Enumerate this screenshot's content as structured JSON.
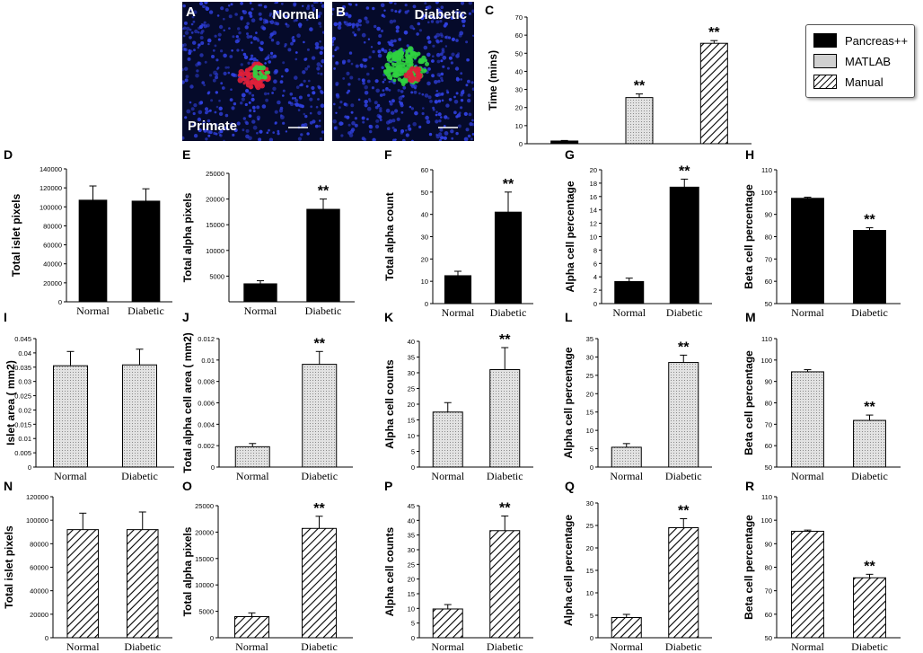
{
  "microscopy": [
    {
      "panel": "A",
      "label": "Normal",
      "sublabel": "Primate"
    },
    {
      "panel": "B",
      "label": "Diabetic",
      "sublabel": ""
    }
  ],
  "legend": [
    {
      "name": "Pancreas++",
      "pattern": "solid"
    },
    {
      "name": "MATLAB",
      "pattern": "dotted"
    },
    {
      "name": "Manual",
      "pattern": "hatched"
    }
  ],
  "colors": {
    "solid": "#000000",
    "dotted": "#d0d0d0",
    "hatched_line": "#000000",
    "cell_red": "#e0203a",
    "cell_green": "#30d040",
    "nuclei": "#3040e0"
  },
  "chart_data": [
    {
      "panel": "C",
      "type": "bar",
      "ylabel": "Time (mins)",
      "ylim": [
        0,
        70
      ],
      "yticks": [
        0,
        10,
        20,
        30,
        40,
        50,
        60,
        70
      ],
      "categories": [
        "",
        "",
        " "
      ],
      "values": [
        1.5,
        25.5,
        55.5
      ],
      "errors": [
        0.3,
        2,
        1.5
      ],
      "patterns": [
        "solid",
        "dotted",
        "hatched"
      ],
      "marks": [
        "",
        "**",
        "**"
      ]
    },
    {
      "panel": "D",
      "type": "bar",
      "ylabel": "Total islet pixels",
      "ylim": [
        0,
        140000
      ],
      "yticks": [
        0,
        20000,
        40000,
        60000,
        80000,
        100000,
        120000,
        140000
      ],
      "categories": [
        "Normal",
        "Diabetic"
      ],
      "values": [
        107000,
        106000
      ],
      "errors": [
        15000,
        13000
      ],
      "pattern": "solid",
      "marks": [
        "",
        ""
      ]
    },
    {
      "panel": "E",
      "type": "bar",
      "ylabel": "Total alpha pixels",
      "ylim": [
        0,
        25000
      ],
      "yticks": [
        5000,
        10000,
        15000,
        20000,
        25000
      ],
      "categories": [
        "Normal",
        "Diabetic"
      ],
      "values": [
        3500,
        18000
      ],
      "errors": [
        600,
        2000
      ],
      "pattern": "solid",
      "marks": [
        "",
        "**"
      ]
    },
    {
      "panel": "F",
      "type": "bar",
      "ylabel": "Total alpha count",
      "ylim": [
        0,
        60
      ],
      "yticks": [
        0,
        10,
        20,
        30,
        40,
        50,
        60
      ],
      "categories": [
        "Normal",
        "Diabetic"
      ],
      "values": [
        12.5,
        41
      ],
      "errors": [
        2,
        9
      ],
      "pattern": "solid",
      "marks": [
        "",
        "**"
      ]
    },
    {
      "panel": "G",
      "type": "bar",
      "ylabel": "Alpha cell percentage",
      "ylim": [
        0,
        20
      ],
      "yticks": [
        0,
        2,
        4,
        6,
        8,
        10,
        12,
        14,
        16,
        18,
        20
      ],
      "categories": [
        "Normal",
        "Diabetic"
      ],
      "values": [
        3.3,
        17.4
      ],
      "errors": [
        0.5,
        1.2
      ],
      "pattern": "solid",
      "marks": [
        "",
        "**"
      ]
    },
    {
      "panel": "H",
      "type": "bar",
      "ylabel": "Beta cell percentage",
      "ylim": [
        50,
        110
      ],
      "yticks": [
        50,
        60,
        70,
        80,
        90,
        100,
        110
      ],
      "categories": [
        "Normal",
        "Diabetic"
      ],
      "values": [
        97.2,
        82.8
      ],
      "errors": [
        0.5,
        1.2
      ],
      "pattern": "solid",
      "marks": [
        "",
        "**"
      ]
    },
    {
      "panel": "I",
      "type": "bar",
      "ylabel": "Islet area ( mm2)",
      "ylim": [
        0,
        0.045
      ],
      "yticks": [
        0,
        0.005,
        0.01,
        0.015,
        0.02,
        0.025,
        0.03,
        0.035,
        0.04,
        0.045
      ],
      "categories": [
        "Normal",
        "Diabetic"
      ],
      "values": [
        0.0355,
        0.0358
      ],
      "errors": [
        0.005,
        0.0055
      ],
      "pattern": "dotted",
      "marks": [
        "",
        ""
      ]
    },
    {
      "panel": "J",
      "type": "bar",
      "ylabel": "Total alpha cell area ( mm2)",
      "ylim": [
        0,
        0.012
      ],
      "yticks": [
        0,
        0.002,
        0.004,
        0.006,
        0.008,
        0.01,
        0.012
      ],
      "categories": [
        "Normal",
        "Diabetic"
      ],
      "values": [
        0.0019,
        0.0096
      ],
      "errors": [
        0.0003,
        0.0012
      ],
      "pattern": "dotted",
      "marks": [
        "",
        "**"
      ]
    },
    {
      "panel": "K",
      "type": "bar",
      "ylabel": "Alpha cell counts",
      "ylim": [
        0,
        40
      ],
      "yticks": [
        0,
        5,
        10,
        15,
        20,
        25,
        30,
        35,
        40
      ],
      "categories": [
        "Normal",
        "Diabetic"
      ],
      "values": [
        17.5,
        31
      ],
      "errors": [
        3,
        7
      ],
      "pattern": "dotted",
      "marks": [
        "",
        "**"
      ]
    },
    {
      "panel": "L",
      "type": "bar",
      "ylabel": "Alpha cell percentage",
      "ylim": [
        0,
        35
      ],
      "yticks": [
        0,
        5,
        10,
        15,
        20,
        25,
        30,
        35
      ],
      "categories": [
        "Normal",
        "Diabetic"
      ],
      "values": [
        5.4,
        28.5
      ],
      "errors": [
        1,
        2
      ],
      "pattern": "dotted",
      "marks": [
        "",
        "**"
      ]
    },
    {
      "panel": "M",
      "type": "bar",
      "ylabel": "Beta cell percentage",
      "ylim": [
        50,
        110
      ],
      "yticks": [
        50,
        60,
        70,
        80,
        90,
        100,
        110
      ],
      "categories": [
        "Normal",
        "Diabetic"
      ],
      "values": [
        94.5,
        71.8
      ],
      "errors": [
        1,
        2.5
      ],
      "pattern": "dotted",
      "marks": [
        "",
        "**"
      ]
    },
    {
      "panel": "N",
      "type": "bar",
      "ylabel": "Total islet pixels",
      "ylim": [
        0,
        120000
      ],
      "yticks": [
        0,
        20000,
        40000,
        60000,
        80000,
        100000,
        120000
      ],
      "categories": [
        "Normal",
        "Diabetic"
      ],
      "values": [
        92000,
        92000
      ],
      "errors": [
        14000,
        15000
      ],
      "pattern": "hatched",
      "marks": [
        "",
        ""
      ]
    },
    {
      "panel": "O",
      "type": "bar",
      "ylabel": "Total alpha pixels",
      "ylim": [
        0,
        25000
      ],
      "yticks": [
        0,
        5000,
        10000,
        15000,
        20000,
        25000
      ],
      "categories": [
        "Normal",
        "Diabetic"
      ],
      "values": [
        4000,
        20700
      ],
      "errors": [
        700,
        2300
      ],
      "pattern": "hatched",
      "marks": [
        "",
        "**"
      ]
    },
    {
      "panel": "P",
      "type": "bar",
      "ylabel": "Alpha cell counts",
      "ylim": [
        0,
        45
      ],
      "yticks": [
        0,
        5,
        10,
        15,
        20,
        25,
        30,
        35,
        40,
        45
      ],
      "categories": [
        "Normal",
        "Diabetic"
      ],
      "values": [
        9.8,
        36.5
      ],
      "errors": [
        1.5,
        5
      ],
      "pattern": "hatched",
      "marks": [
        "",
        "**"
      ]
    },
    {
      "panel": "Q",
      "type": "bar",
      "ylabel": "Alpha cell percentage",
      "ylim": [
        0,
        30
      ],
      "yticks": [
        0,
        5,
        10,
        15,
        20,
        25,
        30
      ],
      "categories": [
        "Normal",
        "Diabetic"
      ],
      "values": [
        4.5,
        24.5
      ],
      "errors": [
        0.7,
        2
      ],
      "pattern": "hatched",
      "marks": [
        "",
        "**"
      ]
    },
    {
      "panel": "R",
      "type": "bar",
      "ylabel": "Beta cell percentage",
      "ylim": [
        50,
        110
      ],
      "yticks": [
        50,
        60,
        70,
        80,
        90,
        100,
        110
      ],
      "categories": [
        "Normal",
        "Diabetic"
      ],
      "values": [
        95.3,
        75.5
      ],
      "errors": [
        0.5,
        1.5
      ],
      "pattern": "hatched",
      "marks": [
        "",
        "**"
      ]
    }
  ]
}
